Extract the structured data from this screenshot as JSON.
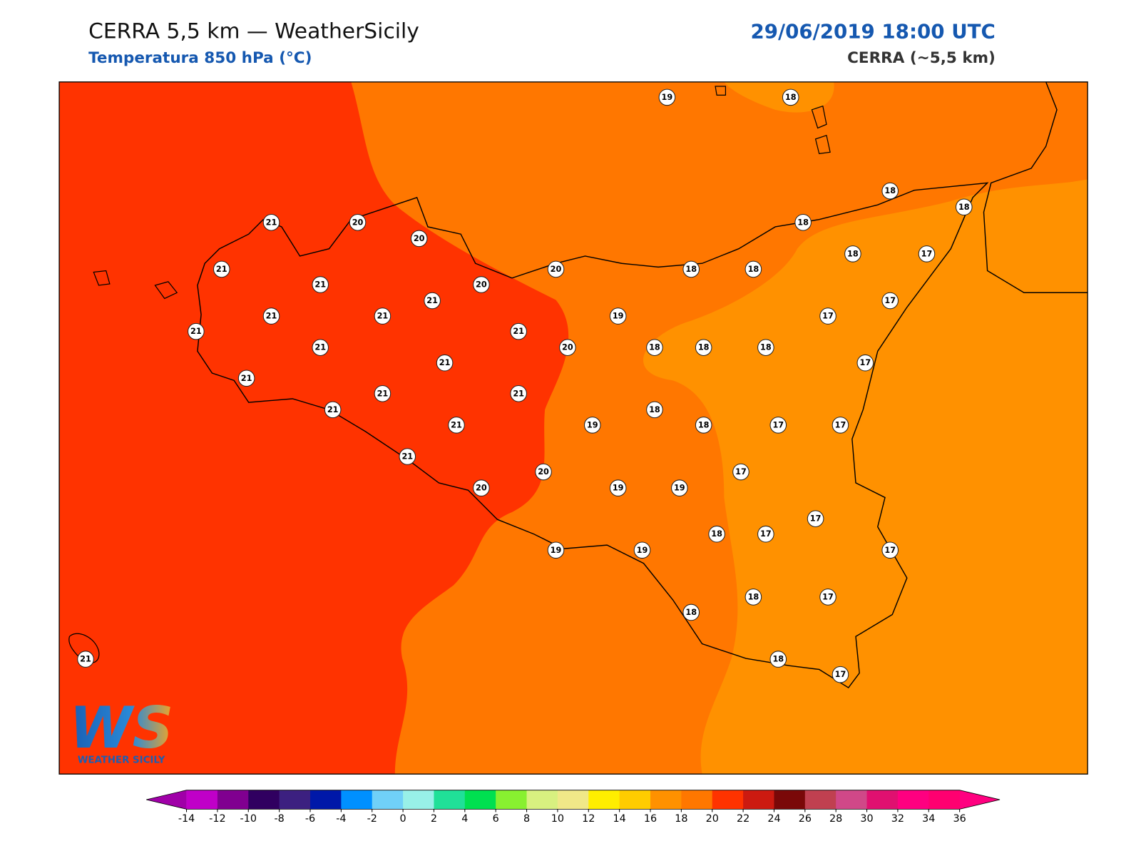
{
  "header": {
    "title": "CERRA 5,5 km — WeatherSicily",
    "subtitle": "Temperatura 850 hPa (°C)",
    "datetime": "29/06/2019 18:00 UTC",
    "model": "CERRA (~5,5 km)"
  },
  "stations": [
    19,
    18,
    21,
    20,
    20,
    18,
    18,
    18,
    21,
    21,
    20,
    18,
    18,
    18,
    17,
    20,
    21,
    21,
    21,
    19,
    17,
    17,
    21,
    21,
    21,
    20,
    18,
    18,
    18,
    21,
    17,
    21,
    21,
    21,
    21,
    18,
    21,
    19,
    18,
    17,
    17,
    21,
    17,
    20,
    20,
    19,
    19,
    17,
    18,
    17,
    19,
    19,
    17,
    18,
    17,
    18,
    21,
    18,
    17
  ],
  "colorbar": {
    "ticks": [
      -14,
      -12,
      -10,
      -8,
      -6,
      -4,
      -2,
      0,
      2,
      4,
      6,
      8,
      10,
      12,
      14,
      16,
      18,
      20,
      22,
      24,
      26,
      28,
      30,
      32,
      34,
      36
    ],
    "colors": [
      "#c000c8",
      "#800090",
      "#300060",
      "#3c2080",
      "#0018a8",
      "#0090ff",
      "#70d0f8",
      "#98f0e8",
      "#20e098",
      "#00e050",
      "#88f030",
      "#d8f080",
      "#f0e888",
      "#ffee00",
      "#ffcc00",
      "#ff9100",
      "#ff7700",
      "#ff3300",
      "#cc1a10",
      "#7a0808",
      "#c04050",
      "#d04888",
      "#e01070",
      "#ff0080",
      "#ff0070"
    ],
    "under": "#a000a8",
    "over": "#ff0080"
  },
  "logo": {
    "mark": "WS",
    "text": "WEATHER SICILY"
  }
}
